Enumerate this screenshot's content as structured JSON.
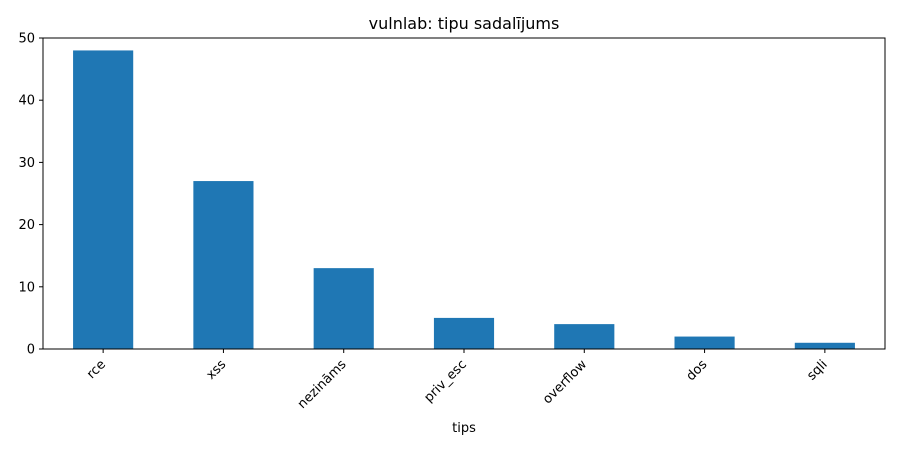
{
  "chart_data": {
    "type": "bar",
    "title": "vulnlab: tipu sadalījums",
    "xlabel": "tips",
    "ylabel": "",
    "categories": [
      "rce",
      "xss",
      "nezināms",
      "priv_esc",
      "overflow",
      "dos",
      "sqli"
    ],
    "values": [
      48,
      27,
      13,
      5,
      4,
      2,
      1
    ],
    "ylim": [
      0,
      50
    ],
    "yticks": [
      0,
      10,
      20,
      30,
      40,
      50
    ],
    "bar_color": "#1f77b4",
    "grid": false,
    "legend": "none"
  }
}
